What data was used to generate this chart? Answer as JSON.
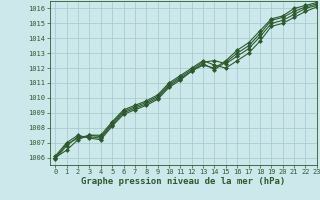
{
  "xlabel": "Graphe pression niveau de la mer (hPa)",
  "xlim": [
    -0.5,
    23
  ],
  "ylim": [
    1005.5,
    1016.5
  ],
  "yticks": [
    1006,
    1007,
    1008,
    1009,
    1010,
    1011,
    1012,
    1013,
    1014,
    1015,
    1016
  ],
  "xticks": [
    0,
    1,
    2,
    3,
    4,
    5,
    6,
    7,
    8,
    9,
    10,
    11,
    12,
    13,
    14,
    15,
    16,
    17,
    18,
    19,
    20,
    21,
    22,
    23
  ],
  "background_color": "#cce8ea",
  "grid_color": "#a0c8cc",
  "line_color": "#2d5a2d",
  "marker": "D",
  "markersize": 2.0,
  "linewidth": 0.8,
  "tick_fontsize": 5.0,
  "xlabel_fontsize": 6.5,
  "series": [
    [
      1006.0,
      1006.5,
      1007.2,
      1007.5,
      1007.5,
      1008.4,
      1009.2,
      1009.5,
      1009.8,
      1010.2,
      1011.0,
      1011.5,
      1012.0,
      1012.5,
      1012.2,
      1012.0,
      1012.5,
      1013.0,
      1013.8,
      1014.8,
      1015.0,
      1015.4,
      1015.8,
      1016.1
    ],
    [
      1006.0,
      1006.9,
      1007.3,
      1007.5,
      1007.4,
      1008.3,
      1009.1,
      1009.4,
      1009.7,
      1010.1,
      1010.9,
      1011.4,
      1011.9,
      1012.4,
      1012.5,
      1012.3,
      1012.8,
      1013.3,
      1014.1,
      1015.0,
      1015.2,
      1015.6,
      1016.0,
      1016.2
    ],
    [
      1005.9,
      1006.8,
      1007.4,
      1007.4,
      1007.3,
      1008.2,
      1009.0,
      1009.3,
      1009.6,
      1010.0,
      1010.8,
      1011.3,
      1011.8,
      1012.3,
      1011.9,
      1012.4,
      1013.0,
      1013.5,
      1014.3,
      1015.2,
      1015.4,
      1015.8,
      1016.1,
      1016.3
    ],
    [
      1006.1,
      1007.0,
      1007.5,
      1007.3,
      1007.2,
      1008.1,
      1008.9,
      1009.2,
      1009.5,
      1009.9,
      1010.7,
      1011.2,
      1011.8,
      1012.2,
      1012.0,
      1012.5,
      1013.2,
      1013.7,
      1014.5,
      1015.3,
      1015.5,
      1016.0,
      1016.2,
      1016.4
    ]
  ]
}
